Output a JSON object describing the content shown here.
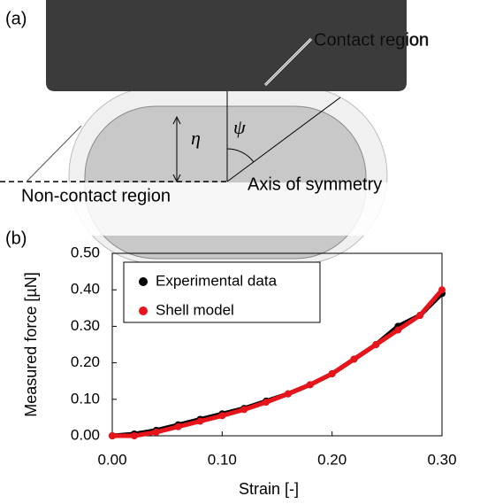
{
  "panels": {
    "a": "(a)",
    "b": "(b)"
  },
  "diagram": {
    "contact_label": "Contact region",
    "eta": "η",
    "psi": "ψ",
    "noncontact_label": "Non-contact region",
    "axis_label": "Axis of symmetry"
  },
  "chart_data": {
    "type": "scatter",
    "x_label": "Strain [-]",
    "y_label": "Measured force [µN]",
    "xlim": [
      0,
      0.3
    ],
    "ylim": [
      0,
      0.5
    ],
    "xticks": [
      {
        "value": 0,
        "label": "0.00"
      },
      {
        "value": 0.1,
        "label": "0.10"
      },
      {
        "value": 0.2,
        "label": "0.20"
      },
      {
        "value": 0.3,
        "label": "0.30"
      }
    ],
    "yticks": [
      {
        "value": 0,
        "label": "0.00"
      },
      {
        "value": 0.1,
        "label": "0.10"
      },
      {
        "value": 0.2,
        "label": "0.20"
      },
      {
        "value": 0.3,
        "label": "0.30"
      },
      {
        "value": 0.4,
        "label": "0.40"
      },
      {
        "value": 0.5,
        "label": "0.50"
      }
    ],
    "grid": false,
    "legend": "upper left",
    "x": [
      0,
      0.02,
      0.04,
      0.06,
      0.08,
      0.1,
      0.12,
      0.14,
      0.16,
      0.18,
      0.2,
      0.22,
      0.24,
      0.26,
      0.28,
      0.3
    ],
    "series": [
      {
        "name": "Experimental data",
        "color": "#000000",
        "values": [
          0,
          0.005,
          0.015,
          0.03,
          0.045,
          0.06,
          0.075,
          0.095,
          0.115,
          0.14,
          0.17,
          0.21,
          0.25,
          0.3,
          0.33,
          0.39
        ]
      },
      {
        "name": "Shell model",
        "color": "#e8141b",
        "values": [
          0,
          0,
          0.01,
          0.025,
          0.04,
          0.055,
          0.072,
          0.092,
          0.115,
          0.14,
          0.17,
          0.21,
          0.25,
          0.29,
          0.33,
          0.4
        ]
      }
    ]
  }
}
